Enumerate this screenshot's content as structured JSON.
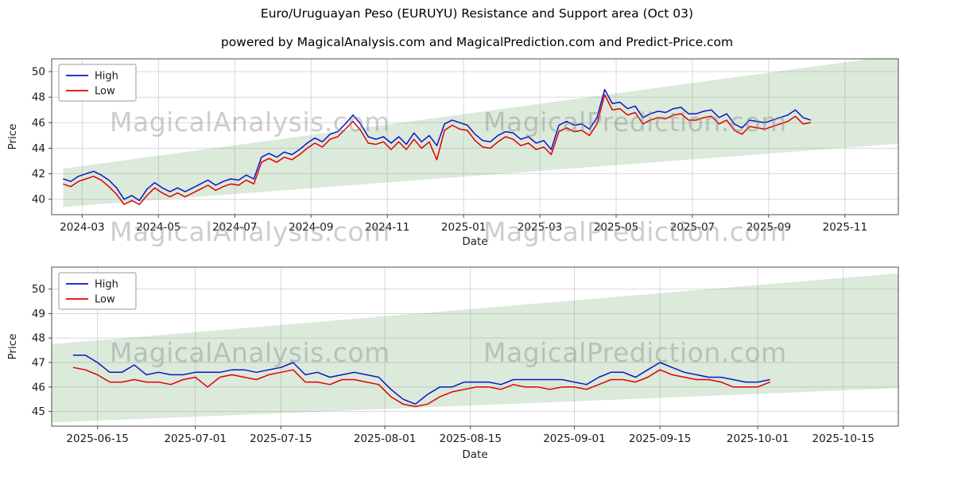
{
  "page": {
    "title": "Euro/Uruguayan Peso (EURUYU) Resistance and Support area (Oct 03)",
    "subtitle": "powered by MagicalAnalysis.com and MagicalPrediction.com and Predict-Price.com"
  },
  "watermarks": {
    "analysis": "MagicalAnalysis.com",
    "prediction": "MagicalPrediction.com"
  },
  "chart_data": [
    {
      "type": "line",
      "title": "",
      "xlabel": "Date",
      "ylabel": "Price",
      "grid": true,
      "legend_position": "upper-left",
      "xlim": [
        1.2,
        23.4
      ],
      "ylim": [
        38.8,
        51.0
      ],
      "xticks": [
        {
          "v": 2,
          "label": "2024-03"
        },
        {
          "v": 4,
          "label": "2024-05"
        },
        {
          "v": 6,
          "label": "2024-07"
        },
        {
          "v": 8,
          "label": "2024-09"
        },
        {
          "v": 10,
          "label": "2024-11"
        },
        {
          "v": 12,
          "label": "2025-01"
        },
        {
          "v": 14,
          "label": "2025-03"
        },
        {
          "v": 16,
          "label": "2025-05"
        },
        {
          "v": 18,
          "label": "2025-07"
        },
        {
          "v": 20,
          "label": "2025-09"
        },
        {
          "v": 22,
          "label": "2025-11"
        }
      ],
      "yticks": [
        40,
        42,
        44,
        46,
        48,
        50
      ],
      "band": {
        "x0": 1.5,
        "x1": 23.4,
        "bottom0": 39.4,
        "bottom1": 44.35,
        "top0": 42.4,
        "top1": 51.3,
        "color": "rgba(90,160,90,0.22)"
      },
      "series": [
        {
          "name": "High",
          "color": "#0a16c8",
          "x_start": 1.5,
          "x_step": 0.2,
          "values": [
            41.6,
            41.4,
            41.8,
            42.0,
            42.2,
            41.9,
            41.5,
            40.9,
            40.0,
            40.3,
            39.9,
            40.8,
            41.3,
            40.9,
            40.6,
            40.9,
            40.6,
            40.9,
            41.2,
            41.5,
            41.1,
            41.4,
            41.6,
            41.5,
            41.9,
            41.6,
            43.3,
            43.6,
            43.3,
            43.7,
            43.5,
            43.9,
            44.4,
            44.8,
            44.5,
            45.1,
            45.3,
            45.9,
            46.6,
            45.9,
            44.9,
            44.7,
            44.9,
            44.4,
            44.9,
            44.3,
            45.2,
            44.5,
            45.0,
            44.2,
            45.9,
            46.2,
            46.0,
            45.8,
            45.1,
            44.6,
            44.5,
            45.0,
            45.3,
            45.2,
            44.7,
            44.9,
            44.4,
            44.6,
            43.9,
            45.8,
            46.1,
            45.8,
            45.9,
            45.5,
            46.4,
            48.6,
            47.5,
            47.6,
            47.1,
            47.3,
            46.4,
            46.7,
            46.9,
            46.8,
            47.1,
            47.2,
            46.7,
            46.7,
            46.9,
            47.0,
            46.4,
            46.7,
            45.9,
            45.6,
            46.2,
            46.1,
            46.0,
            46.2,
            46.4,
            46.6,
            47.0,
            46.4,
            46.2
          ]
        },
        {
          "name": "Low",
          "color": "#e00000",
          "x_start": 1.5,
          "x_step": 0.2,
          "values": [
            41.2,
            41.0,
            41.4,
            41.6,
            41.8,
            41.5,
            41.0,
            40.4,
            39.6,
            39.9,
            39.6,
            40.3,
            40.9,
            40.5,
            40.2,
            40.5,
            40.2,
            40.5,
            40.8,
            41.1,
            40.7,
            41.0,
            41.2,
            41.1,
            41.5,
            41.2,
            42.9,
            43.2,
            42.9,
            43.3,
            43.1,
            43.5,
            44.0,
            44.4,
            44.1,
            44.7,
            44.9,
            45.5,
            46.1,
            45.4,
            44.4,
            44.3,
            44.5,
            43.9,
            44.5,
            43.9,
            44.7,
            44.0,
            44.5,
            43.1,
            45.4,
            45.8,
            45.5,
            45.4,
            44.6,
            44.1,
            44.0,
            44.5,
            44.9,
            44.7,
            44.2,
            44.4,
            43.9,
            44.1,
            43.5,
            45.3,
            45.6,
            45.3,
            45.4,
            45.0,
            45.9,
            48.2,
            47.0,
            47.1,
            46.6,
            46.8,
            45.9,
            46.2,
            46.4,
            46.3,
            46.6,
            46.7,
            46.2,
            46.2,
            46.4,
            46.5,
            45.9,
            46.2,
            45.4,
            45.1,
            45.7,
            45.6,
            45.5,
            45.7,
            45.9,
            46.1,
            46.5,
            45.9,
            46.0
          ]
        }
      ]
    },
    {
      "type": "line",
      "title": "",
      "xlabel": "Date",
      "ylabel": "Price",
      "grid": true,
      "legend_position": "upper-left",
      "xlim": [
        6.5,
        145
      ],
      "ylim": [
        44.4,
        50.9
      ],
      "xticks": [
        {
          "v": 14,
          "label": "2025-06-15"
        },
        {
          "v": 30,
          "label": "2025-07-01"
        },
        {
          "v": 44,
          "label": "2025-07-15"
        },
        {
          "v": 61,
          "label": "2025-08-01"
        },
        {
          "v": 75,
          "label": "2025-08-15"
        },
        {
          "v": 92,
          "label": "2025-09-01"
        },
        {
          "v": 106,
          "label": "2025-09-15"
        },
        {
          "v": 122,
          "label": "2025-10-01"
        },
        {
          "v": 136,
          "label": "2025-10-15"
        }
      ],
      "yticks": [
        45,
        46,
        47,
        48,
        49,
        50
      ],
      "band": {
        "x0": 6.5,
        "x1": 145,
        "bottom0": 44.55,
        "bottom1": 45.95,
        "top0": 47.75,
        "top1": 50.65,
        "color": "rgba(90,160,90,0.22)"
      },
      "series": [
        {
          "name": "High",
          "color": "#0a16c8",
          "x_start": 10,
          "x_step": 2,
          "values": [
            47.3,
            47.3,
            47.0,
            46.6,
            46.6,
            46.9,
            46.5,
            46.6,
            46.5,
            46.5,
            46.6,
            46.6,
            46.6,
            46.7,
            46.7,
            46.6,
            46.7,
            46.8,
            47.0,
            46.5,
            46.6,
            46.4,
            46.5,
            46.6,
            46.5,
            46.4,
            45.9,
            45.5,
            45.3,
            45.7,
            46.0,
            46.0,
            46.2,
            46.2,
            46.2,
            46.1,
            46.3,
            46.3,
            46.3,
            46.3,
            46.3,
            46.2,
            46.1,
            46.4,
            46.6,
            46.6,
            46.4,
            46.7,
            47.0,
            46.8,
            46.6,
            46.5,
            46.4,
            46.4,
            46.3,
            46.2,
            46.2,
            46.3
          ]
        },
        {
          "name": "Low",
          "color": "#e00000",
          "x_start": 10,
          "x_step": 2,
          "values": [
            46.8,
            46.7,
            46.5,
            46.2,
            46.2,
            46.3,
            46.2,
            46.2,
            46.1,
            46.3,
            46.4,
            46.0,
            46.4,
            46.5,
            46.4,
            46.3,
            46.5,
            46.6,
            46.7,
            46.2,
            46.2,
            46.1,
            46.3,
            46.3,
            46.2,
            46.1,
            45.6,
            45.3,
            45.2,
            45.3,
            45.6,
            45.8,
            45.9,
            46.0,
            46.0,
            45.9,
            46.1,
            46.0,
            46.0,
            45.9,
            46.0,
            46.0,
            45.9,
            46.1,
            46.3,
            46.3,
            46.2,
            46.4,
            46.7,
            46.5,
            46.4,
            46.3,
            46.3,
            46.2,
            46.0,
            46.0,
            46.0,
            46.2
          ]
        }
      ]
    }
  ]
}
